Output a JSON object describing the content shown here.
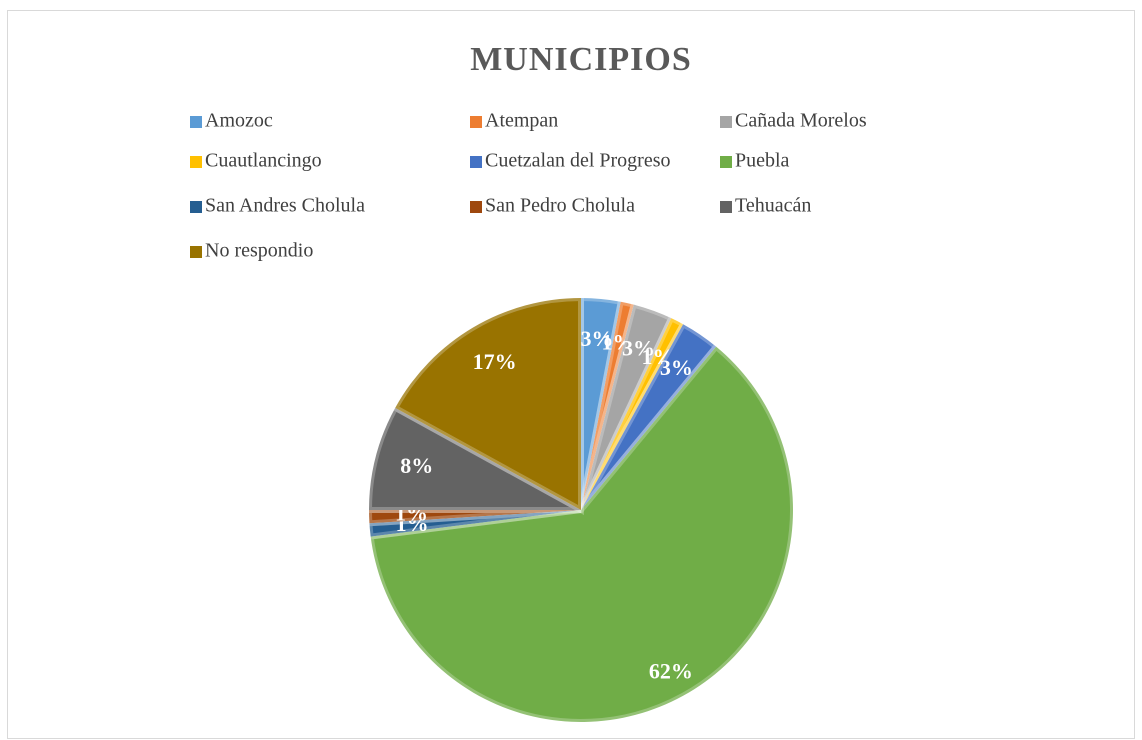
{
  "chart_data": {
    "type": "pie",
    "title": "MUNICIPIOS",
    "categories": [
      "Amozoc",
      "Atempan",
      "Cañada Morelos",
      "Cuautlancingo",
      "Cuetzalan del Progreso",
      "Puebla",
      "San Andres Cholula",
      "San Pedro Cholula",
      "Tehuacán",
      "No respondio"
    ],
    "values": [
      3,
      1,
      3,
      1,
      3,
      62,
      1,
      1,
      8,
      17
    ],
    "value_labels": [
      "3%",
      "1%",
      "3%",
      "1%",
      "3%",
      "62%",
      "1%",
      "1%",
      "8%",
      "17%"
    ],
    "colors": [
      "#5b9bd5",
      "#ed7d31",
      "#a5a5a5",
      "#ffc000",
      "#4472c4",
      "#70ad47",
      "#255e91",
      "#9e480e",
      "#636363",
      "#997300"
    ],
    "legend": "top"
  }
}
